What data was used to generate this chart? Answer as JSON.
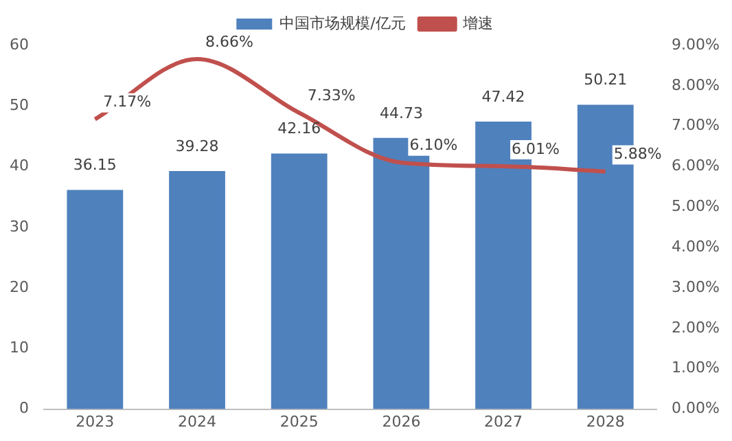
{
  "chart_data": {
    "type": "bar",
    "categories": [
      "2023",
      "2024",
      "2025",
      "2026",
      "2027",
      "2028"
    ],
    "series": [
      {
        "name": "中国市场规模/亿元",
        "color": "#4f81bd",
        "values": [
          36.15,
          39.28,
          42.16,
          44.73,
          47.42,
          50.21
        ],
        "value_labels": [
          "36.15",
          "39.28",
          "42.16",
          "44.73",
          "47.42",
          "50.21"
        ]
      },
      {
        "name": "增速",
        "type": "line",
        "axis": "y2",
        "color": "#c0504d",
        "values": [
          7.17,
          8.66,
          7.33,
          6.1,
          6.01,
          5.88
        ],
        "value_labels": [
          "7.17%",
          "8.66%",
          "7.33%",
          "6.10%",
          "6.01%",
          "5.88%"
        ]
      }
    ],
    "ylim": [
      0,
      60
    ],
    "yticks": [
      0,
      10,
      20,
      30,
      40,
      50,
      60
    ],
    "y2lim": [
      0,
      9
    ],
    "y2ticks": [
      {
        "value": 0,
        "label": "0.00%"
      },
      {
        "value": 1,
        "label": "1.00%"
      },
      {
        "value": 2,
        "label": "2.00%"
      },
      {
        "value": 3,
        "label": "3.00%"
      },
      {
        "value": 4,
        "label": "4.00%"
      },
      {
        "value": 5,
        "label": "5.00%"
      },
      {
        "value": 6,
        "label": "6.00%"
      },
      {
        "value": 7,
        "label": "7.00%"
      },
      {
        "value": 8,
        "label": "8.00%"
      },
      {
        "value": 9,
        "label": "9.00%"
      }
    ],
    "grid": false,
    "legend": "top",
    "marker": "none",
    "line_style": "solid"
  }
}
